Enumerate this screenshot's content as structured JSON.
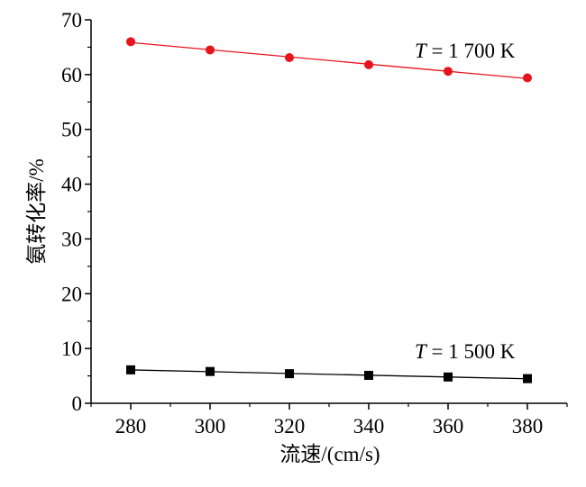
{
  "chart_data": {
    "type": "line",
    "xlabel": "流速/(cm/s)",
    "ylabel": "氨转化率/%",
    "x": [
      280,
      300,
      320,
      340,
      360,
      380
    ],
    "xlim": [
      270,
      390
    ],
    "ylim": [
      0,
      70
    ],
    "xticks": [
      "280",
      "300",
      "320",
      "340",
      "360",
      "380"
    ],
    "yticks": [
      "0",
      "10",
      "20",
      "30",
      "40",
      "50",
      "60",
      "70"
    ],
    "grid": false,
    "series": [
      {
        "label_italic": "T",
        "label_rest": " = 1 700 K",
        "marker": "circle",
        "color": "#e8141c",
        "line_color": "#e8141c",
        "values": [
          66.0,
          64.5,
          63.1,
          61.8,
          60.6,
          59.4
        ]
      },
      {
        "label_italic": "T",
        "label_rest": " = 1 500 K",
        "marker": "square",
        "color": "#000000",
        "line_color": "#000000",
        "values": [
          6.1,
          5.8,
          5.4,
          5.1,
          4.8,
          4.5
        ]
      }
    ]
  }
}
